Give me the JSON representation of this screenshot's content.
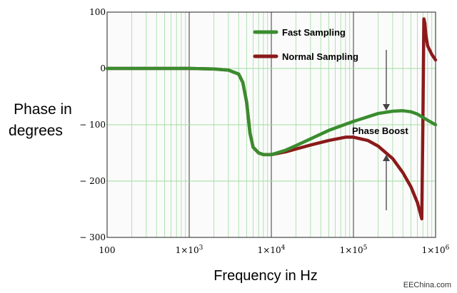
{
  "chart_data": {
    "type": "line",
    "xscale": "log",
    "xlim": [
      100,
      1000000
    ],
    "ylim": [
      -300,
      100
    ],
    "xticks": [
      {
        "value": 100,
        "base": "100",
        "exp": ""
      },
      {
        "value": 1000,
        "base": "1×10",
        "exp": "3"
      },
      {
        "value": 10000,
        "base": "1×10",
        "exp": "4"
      },
      {
        "value": 100000,
        "base": "1×10",
        "exp": "5"
      },
      {
        "value": 1000000,
        "base": "1×10",
        "exp": "6"
      }
    ],
    "yticks": [
      {
        "value": 100,
        "label": "100"
      },
      {
        "value": 0,
        "label": "0"
      },
      {
        "value": -100,
        "label": "− 100"
      },
      {
        "value": -200,
        "label": "− 200"
      },
      {
        "value": -300,
        "label": "− 300"
      }
    ],
    "ylabel_lines": [
      "Phase in",
      "degrees"
    ],
    "xlabel": "Frequency in Hz",
    "grid": true,
    "legend_position": "top-right",
    "series": [
      {
        "name": "Fast Sampling",
        "color": "#3a8c2e",
        "x": [
          100,
          1000,
          2000,
          3000,
          4000,
          4500,
          5000,
          5500,
          6000,
          7000,
          8000,
          10000,
          15000,
          20000,
          30000,
          50000,
          100000,
          200000,
          300000,
          400000,
          500000,
          600000,
          700000,
          800000,
          1000000
        ],
        "y": [
          0,
          0,
          -1,
          -3,
          -10,
          -25,
          -60,
          -115,
          -140,
          -150,
          -153,
          -153,
          -145,
          -137,
          -125,
          -110,
          -94,
          -80,
          -76,
          -75,
          -77,
          -81,
          -87,
          -92,
          -100
        ]
      },
      {
        "name": "Normal Sampling",
        "color": "#8b1a1a",
        "x": [
          100,
          1000,
          2000,
          3000,
          4000,
          4500,
          5000,
          5500,
          6000,
          7000,
          8000,
          10000,
          15000,
          20000,
          30000,
          50000,
          80000,
          100000,
          150000,
          200000,
          300000,
          400000,
          500000,
          600000,
          680000,
          700000,
          720000,
          740000,
          760000,
          800000,
          900000,
          1000000
        ],
        "y": [
          0,
          0,
          -1,
          -3,
          -10,
          -25,
          -60,
          -115,
          -140,
          -150,
          -153,
          -153,
          -148,
          -143,
          -136,
          -128,
          -122,
          -122,
          -128,
          -138,
          -160,
          -185,
          -210,
          -238,
          -267,
          -100,
          88,
          80,
          60,
          40,
          25,
          15
        ]
      }
    ],
    "annotations": [
      {
        "text": "Phase Boost"
      }
    ]
  },
  "watermark": "EEChina.com"
}
